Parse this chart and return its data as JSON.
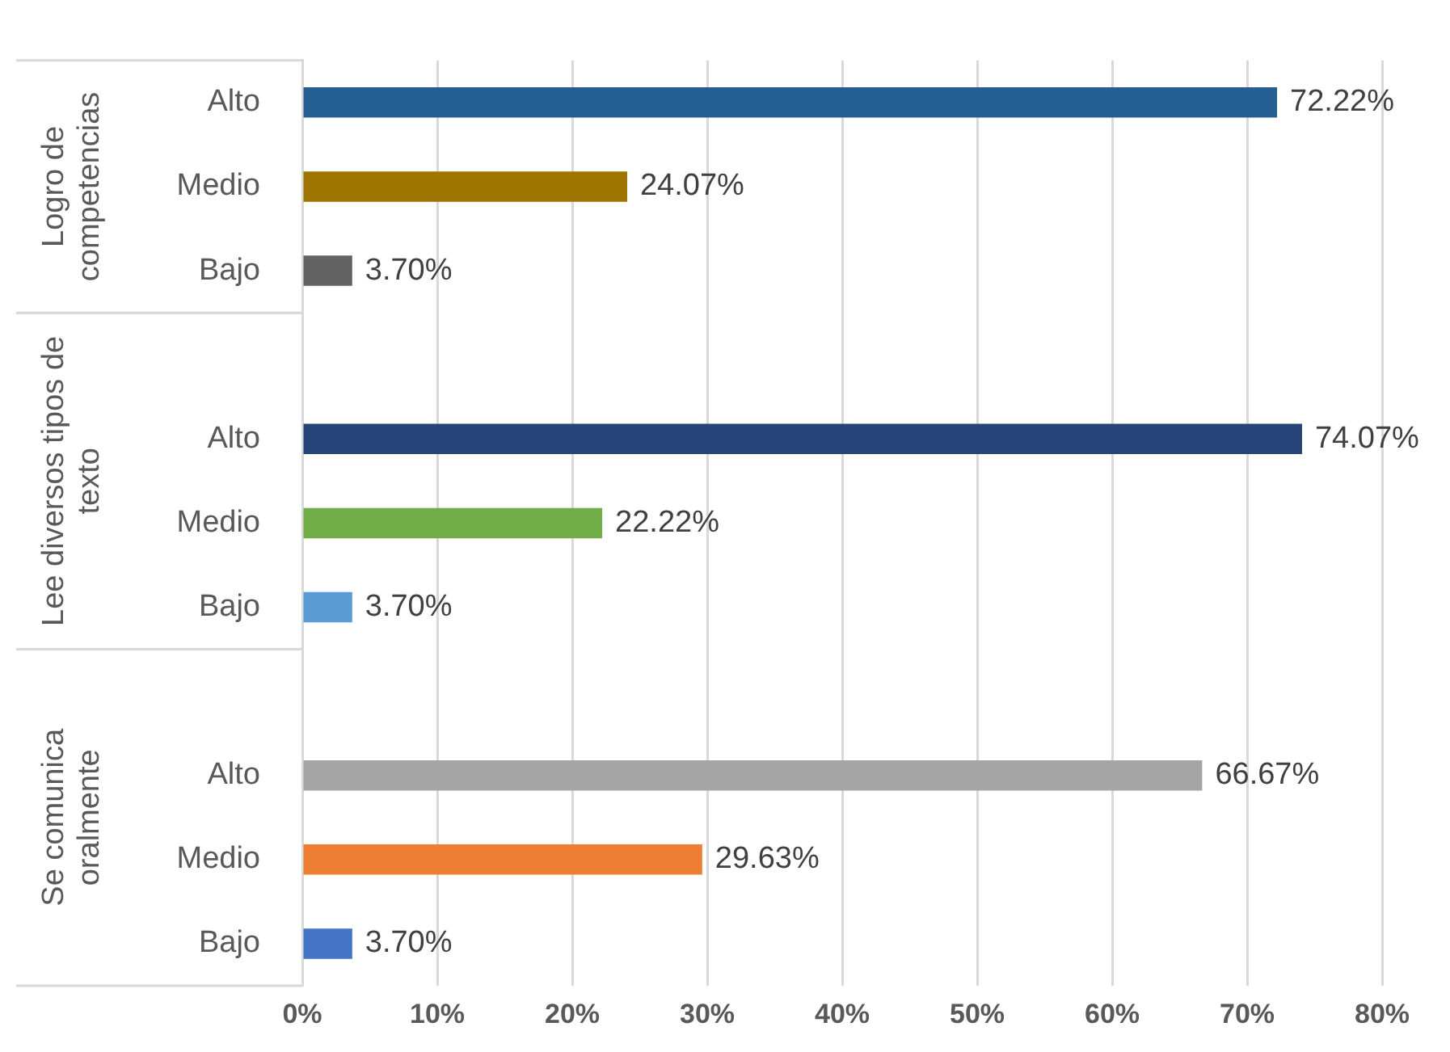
{
  "chart_data": {
    "type": "bar",
    "orientation": "horizontal",
    "categories": [
      "Alto",
      "Medio",
      "Bajo",
      null,
      "Alto",
      "Medio",
      "Bajo",
      null,
      "Alto",
      "Medio",
      "Bajo"
    ],
    "values": [
      72.22,
      24.07,
      3.7,
      null,
      74.07,
      22.22,
      3.7,
      null,
      66.67,
      29.63,
      3.7
    ],
    "colors": [
      "#255e91",
      "#9e7400",
      "#636363",
      "#ffffff",
      "#264478",
      "#70ad47",
      "#5b9bd5",
      "#ffffff",
      "#a5a5a5",
      "#ed7d31",
      "#4472c4"
    ],
    "value_labels": [
      "72.22%",
      "24.07%",
      "3.70%",
      null,
      "74.07%",
      "22.22%",
      "3.70%",
      null,
      "66.67%",
      "29.63%",
      "3.70%"
    ],
    "annotations": [
      "Logro de competencias",
      "Lee diversos tipos de texto",
      "Se comunica oralmente"
    ],
    "xlim": [
      0,
      80
    ],
    "xticks": [
      {
        "value": 0,
        "label": "0%"
      },
      {
        "value": 10,
        "label": "10%"
      },
      {
        "value": 20,
        "label": "20%"
      },
      {
        "value": 30,
        "label": "30%"
      },
      {
        "value": 40,
        "label": "40%"
      },
      {
        "value": 50,
        "label": "50%"
      },
      {
        "value": 60,
        "label": "60%"
      },
      {
        "value": 70,
        "label": "70%"
      },
      {
        "value": 80,
        "label": "80%"
      }
    ],
    "grid": "x",
    "legend": false
  }
}
